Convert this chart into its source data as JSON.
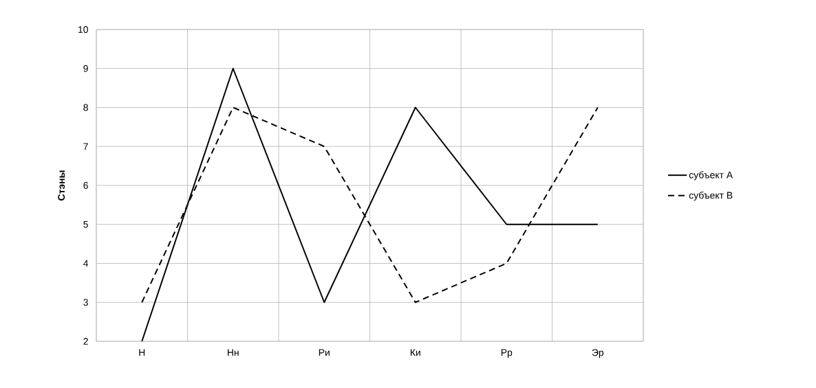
{
  "chart_data": {
    "type": "line",
    "ylabel": "**Стэны**",
    "categories": [
      "Н",
      "Нн",
      "Ри",
      "Ки",
      "Рр",
      "Эр"
    ],
    "series": [
      {
        "name": "субъект А",
        "color": "#000000",
        "line_style": "solid",
        "values": [
          2,
          9,
          3,
          8,
          5,
          5
        ]
      },
      {
        "name": "субъект В",
        "color": "#000000",
        "line_style": "dashed",
        "values": [
          3,
          8,
          7,
          3,
          4,
          8
        ]
      }
    ],
    "ylim": [
      2,
      10
    ],
    "yticks": [
      2,
      3,
      4,
      5,
      6,
      7,
      8,
      9,
      10
    ],
    "grid": true,
    "legend": "right",
    "marker": "none"
  }
}
